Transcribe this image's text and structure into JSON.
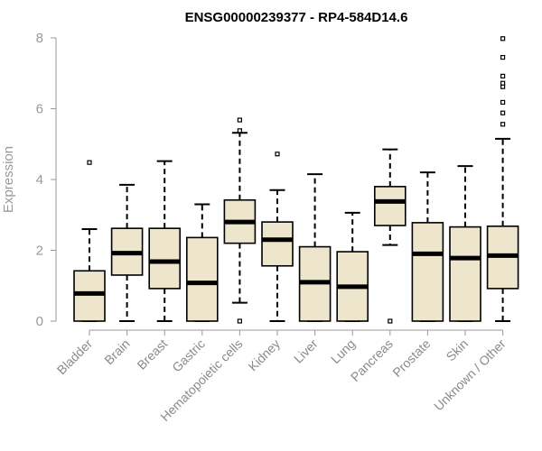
{
  "chart_data": {
    "type": "boxplot",
    "title": "ENSG00000239377 - RP4-584D14.6",
    "ylabel": "Expression",
    "xlabel": "",
    "ylim": [
      0,
      8
    ],
    "yticks": [
      0,
      2,
      4,
      6,
      8
    ],
    "grid": false,
    "box_fill": "#ede6cc",
    "line_color": "#000000",
    "categories": [
      "Bladder",
      "Brain",
      "Breast",
      "Gastric",
      "Hematopoietic cells",
      "Kidney",
      "Liver",
      "Lung",
      "Pancreas",
      "Prostate",
      "Skin",
      "Unknown / Other"
    ],
    "series": [
      {
        "category": "Bladder",
        "whisker_low": 0,
        "q1": 0,
        "median": 0.78,
        "q3": 1.42,
        "whisker_high": 2.6,
        "outliers": [
          4.48
        ]
      },
      {
        "category": "Brain",
        "whisker_low": 0,
        "q1": 1.3,
        "median": 1.92,
        "q3": 2.62,
        "whisker_high": 3.85,
        "outliers": []
      },
      {
        "category": "Breast",
        "whisker_low": 0,
        "q1": 0.92,
        "median": 1.68,
        "q3": 2.62,
        "whisker_high": 4.52,
        "outliers": []
      },
      {
        "category": "Gastric",
        "whisker_low": 0,
        "q1": 0,
        "median": 1.08,
        "q3": 2.36,
        "whisker_high": 3.3,
        "outliers": []
      },
      {
        "category": "Hematopoietic cells",
        "whisker_low": 0.52,
        "q1": 2.2,
        "median": 2.8,
        "q3": 3.42,
        "whisker_high": 5.32,
        "outliers": [
          0,
          5.38,
          5.68
        ]
      },
      {
        "category": "Kidney",
        "whisker_low": 0,
        "q1": 1.56,
        "median": 2.3,
        "q3": 2.8,
        "whisker_high": 3.7,
        "outliers": [
          4.72
        ]
      },
      {
        "category": "Liver",
        "whisker_low": 0,
        "q1": 0,
        "median": 1.1,
        "q3": 2.1,
        "whisker_high": 4.15,
        "outliers": []
      },
      {
        "category": "Lung",
        "whisker_low": 0,
        "q1": 0,
        "median": 0.97,
        "q3": 1.96,
        "whisker_high": 3.06,
        "outliers": []
      },
      {
        "category": "Pancreas",
        "whisker_low": 2.15,
        "q1": 2.7,
        "median": 3.38,
        "q3": 3.8,
        "whisker_high": 4.85,
        "outliers": [
          0
        ]
      },
      {
        "category": "Prostate",
        "whisker_low": 0,
        "q1": 0,
        "median": 1.9,
        "q3": 2.78,
        "whisker_high": 4.2,
        "outliers": []
      },
      {
        "category": "Skin",
        "whisker_low": 0,
        "q1": 0,
        "median": 1.78,
        "q3": 2.66,
        "whisker_high": 4.38,
        "outliers": []
      },
      {
        "category": "Unknown / Other",
        "whisker_low": 0,
        "q1": 0.92,
        "median": 1.85,
        "q3": 2.68,
        "whisker_high": 5.15,
        "outliers": [
          5.56,
          5.88,
          6.18,
          6.62,
          6.72,
          6.92,
          7.45,
          7.98
        ]
      }
    ]
  }
}
